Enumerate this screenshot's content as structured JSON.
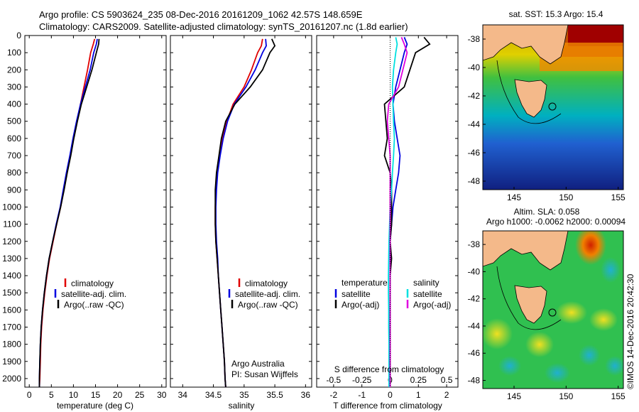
{
  "header": {
    "line1": "Argo profile: CS 5903624_235 08-Dec-2016 20161209_1062 42.57S 148.659E",
    "line2": "Climatology: CARS2009. Satellite-adjusted climatology: synTS_20161207.nc (1.8d earlier)"
  },
  "colors": {
    "climatology": "#e00000",
    "satellite": "#0000e0",
    "argo": "#000000",
    "sal_satellite": "#00e0e0",
    "sal_argo": "#e000e0"
  },
  "depth_ticks": [
    "0",
    "100",
    "200",
    "300",
    "400",
    "500",
    "600",
    "700",
    "800",
    "900",
    "1000",
    "1100",
    "1200",
    "1300",
    "1400",
    "1500",
    "1600",
    "1700",
    "1800",
    "1900",
    "2000"
  ],
  "chart_data": [
    {
      "type": "line",
      "xlabel": "temperature (deg C)",
      "ylim": [
        0,
        2050
      ],
      "xlim": [
        -1,
        31
      ],
      "xticks": [
        "0",
        "5",
        "10",
        "15",
        "20",
        "25",
        "30"
      ],
      "legend": [
        "climatology",
        "satellite-adj. clim.",
        "Argo(..raw -QC)"
      ],
      "series": [
        {
          "name": "climatology",
          "color": "red",
          "x": [
            14.8,
            14.5,
            13.9,
            13.2,
            12.4,
            11.6,
            10.8,
            10.0,
            9.3,
            8.5,
            7.8,
            7.1,
            6.2,
            5.4,
            4.6,
            4.0,
            3.5,
            3.1,
            2.8,
            2.6,
            2.5,
            2.4,
            2.3
          ],
          "y": [
            20,
            50,
            100,
            200,
            300,
            400,
            500,
            600,
            700,
            800,
            900,
            1000,
            1100,
            1200,
            1300,
            1400,
            1500,
            1600,
            1700,
            1800,
            1900,
            2000,
            2050
          ]
        },
        {
          "name": "satellite-adj. clim.",
          "color": "blue",
          "x": [
            15.4,
            15.2,
            14.6,
            13.8,
            12.7,
            11.6,
            10.7,
            9.9,
            9.2,
            8.4,
            7.7,
            7.0,
            6.1,
            5.3,
            4.5,
            3.9,
            3.4,
            3.0,
            2.7,
            2.5,
            2.4,
            2.3,
            2.3
          ],
          "y": [
            20,
            50,
            100,
            200,
            300,
            400,
            500,
            600,
            700,
            800,
            900,
            1000,
            1100,
            1200,
            1300,
            1400,
            1500,
            1600,
            1700,
            1800,
            1900,
            2000,
            2050
          ]
        },
        {
          "name": "Argo(..raw -QC)",
          "color": "black",
          "x": [
            15.8,
            15.7,
            15.2,
            14.2,
            13.0,
            11.8,
            10.9,
            10.1,
            9.4,
            8.6,
            7.9,
            7.1,
            6.2,
            5.3,
            4.5,
            3.9,
            3.4,
            3.0,
            2.7,
            2.5,
            2.4,
            2.3,
            2.3
          ],
          "y": [
            20,
            50,
            100,
            200,
            300,
            400,
            500,
            600,
            700,
            800,
            900,
            1000,
            1100,
            1200,
            1300,
            1400,
            1500,
            1600,
            1700,
            1800,
            1900,
            2000,
            2050
          ]
        }
      ]
    },
    {
      "type": "line",
      "xlabel": "salinity",
      "ylim": [
        0,
        2050
      ],
      "xlim": [
        33.8,
        36.1
      ],
      "xticks": [
        "34",
        "34.5",
        "35",
        "35.5",
        "36"
      ],
      "legend": [
        "climatology",
        "satellite-adj. clim.",
        "Argo(..raw -QC)"
      ],
      "annotation": [
        "Argo Australia",
        "PI: Susan Wijffels"
      ],
      "series": [
        {
          "name": "climatology",
          "color": "red",
          "x": [
            35.3,
            35.28,
            35.22,
            35.12,
            35.0,
            34.82,
            34.72,
            34.65,
            34.6,
            34.56,
            34.54,
            34.53,
            34.53,
            34.54,
            34.56,
            34.58,
            34.6,
            34.62,
            34.64,
            34.66,
            34.68,
            34.69,
            34.7
          ],
          "y": [
            20,
            60,
            100,
            200,
            300,
            400,
            500,
            600,
            700,
            800,
            900,
            1000,
            1100,
            1200,
            1300,
            1400,
            1500,
            1600,
            1700,
            1800,
            1900,
            2000,
            2050
          ]
        },
        {
          "name": "satellite-adj. clim.",
          "color": "blue",
          "x": [
            35.35,
            35.36,
            35.3,
            35.18,
            35.03,
            34.84,
            34.73,
            34.66,
            34.61,
            34.57,
            34.55,
            34.54,
            34.54,
            34.55,
            34.57,
            34.58,
            34.6,
            34.62,
            34.64,
            34.66,
            34.68,
            34.69,
            34.7
          ],
          "y": [
            20,
            60,
            100,
            200,
            300,
            400,
            500,
            600,
            700,
            800,
            900,
            1000,
            1100,
            1200,
            1300,
            1400,
            1500,
            1600,
            1700,
            1800,
            1900,
            2000,
            2050
          ]
        },
        {
          "name": "Argo(..raw -QC)",
          "color": "black",
          "x": [
            35.45,
            35.5,
            35.42,
            35.3,
            35.1,
            34.85,
            34.7,
            34.63,
            34.59,
            34.55,
            34.53,
            34.53,
            34.53,
            34.54,
            34.56,
            34.58,
            34.6,
            34.62,
            34.64,
            34.66,
            34.68,
            34.69,
            34.7
          ],
          "y": [
            20,
            60,
            100,
            200,
            300,
            400,
            500,
            600,
            700,
            800,
            900,
            1000,
            1100,
            1200,
            1300,
            1400,
            1500,
            1600,
            1700,
            1800,
            1900,
            2000,
            2050
          ]
        }
      ]
    },
    {
      "type": "line",
      "xlabel": "T difference from climatology",
      "xlabel_top": "S difference from climatology",
      "ylim": [
        0,
        2050
      ],
      "xlim": [
        -2.6,
        2.4
      ],
      "xticks": [
        "-2",
        "-1",
        "0",
        "1",
        "2"
      ],
      "xticks_top": [
        "-0.5",
        "-0.25",
        "0",
        "0.25",
        "0.5"
      ],
      "legend_left_title": "temperature",
      "legend_left": [
        "satellite",
        "Argo(-adj)"
      ],
      "legend_right_title": "salinity",
      "legend_right": [
        "satellite",
        "Argo(-adj)"
      ],
      "series": [
        {
          "name": "satellite",
          "color": "blue",
          "x": [
            0.5,
            0.6,
            0.5,
            0.35,
            0.2,
            0.1,
            0.15,
            0.25,
            0.35,
            0.3,
            0.2,
            0.1,
            0.05,
            0.0,
            0.0,
            0.0,
            0.0,
            0.0,
            0.0,
            0.0,
            0.0,
            0.0
          ],
          "y": [
            10,
            50,
            100,
            200,
            300,
            400,
            500,
            600,
            700,
            800,
            900,
            1000,
            1100,
            1200,
            1300,
            1400,
            1500,
            1600,
            1700,
            1800,
            1900,
            2050
          ]
        },
        {
          "name": "Argo(-adj)",
          "color": "black",
          "x": [
            1.2,
            1.4,
            0.9,
            0.7,
            0.5,
            -0.2,
            -0.15,
            -0.1,
            -0.2,
            0.0,
            0.05,
            0.05,
            0.05,
            0.0,
            0.05,
            0.0,
            0.0,
            0.0,
            0.0,
            0.0,
            0.0,
            0.0
          ],
          "y": [
            10,
            50,
            100,
            200,
            300,
            400,
            500,
            600,
            700,
            800,
            900,
            1000,
            1100,
            1200,
            1300,
            1400,
            1500,
            1600,
            1700,
            1800,
            1900,
            2050
          ]
        },
        {
          "name": "satellite",
          "color": "cyan",
          "x": [
            0.2,
            0.25,
            0.2,
            0.12,
            0.08,
            0.1,
            0.12,
            0.15,
            0.12,
            0.08,
            0.05,
            0.0,
            -0.02,
            -0.04,
            -0.05,
            -0.06,
            -0.06,
            -0.05,
            -0.05,
            -0.04,
            -0.04,
            -0.04
          ],
          "y": [
            10,
            50,
            100,
            200,
            300,
            400,
            500,
            600,
            700,
            800,
            900,
            1000,
            1100,
            1200,
            1300,
            1400,
            1500,
            1600,
            1700,
            1800,
            1900,
            2050
          ]
        },
        {
          "name": "Argo(-adj)",
          "color": "magenta",
          "x": [
            0.4,
            0.5,
            0.6,
            0.45,
            0.3,
            -0.05,
            -0.1,
            -0.05,
            0.0,
            0.0,
            0.0,
            0.0,
            0.0,
            0.0,
            0.0,
            0.0,
            0.0,
            0.0,
            0.0,
            0.0,
            0.0,
            0.0
          ],
          "y": [
            10,
            50,
            100,
            200,
            300,
            400,
            500,
            600,
            700,
            800,
            900,
            1000,
            1100,
            1200,
            1300,
            1400,
            1500,
            1600,
            1700,
            1800,
            1900,
            2050
          ]
        }
      ]
    },
    {
      "type": "heatmap",
      "title": "sat. SST: 15.3 Argo: 15.4",
      "xlim": [
        142,
        155.5
      ],
      "ylim": [
        -48.6,
        -37
      ],
      "xticks": [
        "145",
        "150",
        "155"
      ],
      "yticks": [
        "-38",
        "-40",
        "-42",
        "-44",
        "-46",
        "-48"
      ]
    },
    {
      "type": "heatmap",
      "title": "Altim. SLA: 0.058",
      "subtitle": "Argo h1000: -0.0062 h2000: 0.00094",
      "xlim": [
        142,
        155.5
      ],
      "ylim": [
        -48.6,
        -37
      ],
      "xticks": [
        "145",
        "150",
        "155"
      ],
      "yticks": [
        "-38",
        "-40",
        "-42",
        "-44",
        "-46",
        "-48"
      ]
    }
  ],
  "credit": "©IMOS 14-Dec-2016 20:42:30"
}
